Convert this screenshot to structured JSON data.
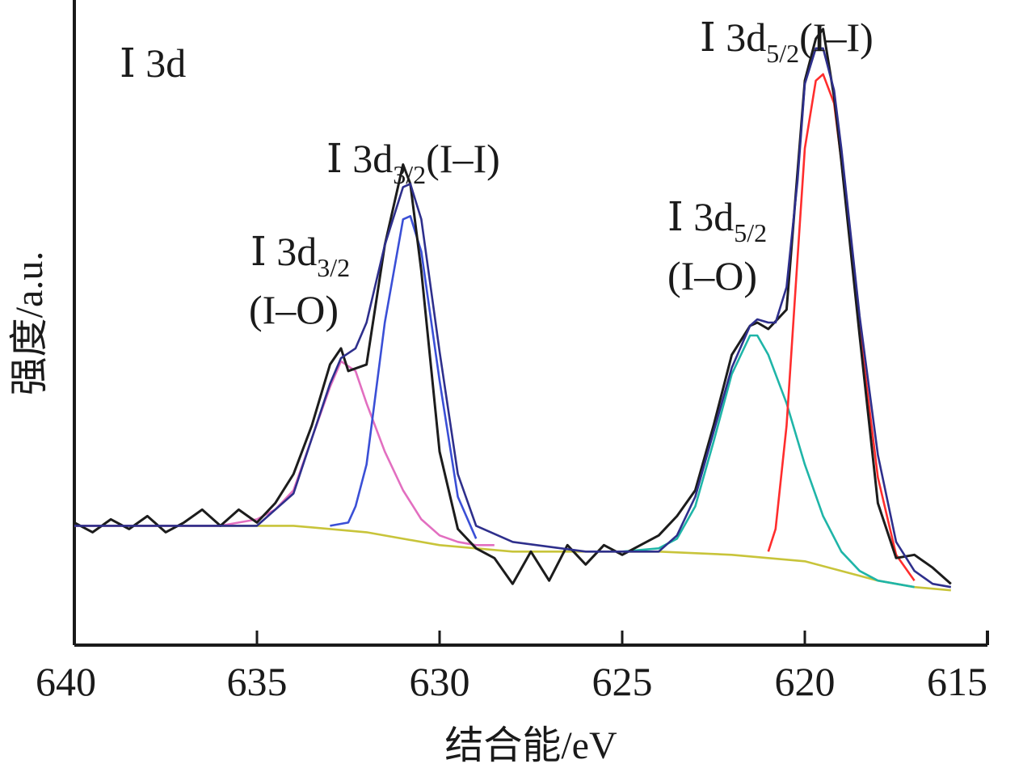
{
  "chart_data": {
    "type": "line",
    "panel_label": "Ⅰ 3d",
    "xlabel": "结合能/eV",
    "ylabel": "强度/a.u.",
    "xlim": [
      640,
      615
    ],
    "x_reversed": true,
    "x_ticks": [
      640,
      635,
      630,
      625,
      620,
      615
    ],
    "x_tick_labels": [
      "640",
      "635",
      "630",
      "625",
      "620",
      "615"
    ],
    "y_ticks_shown": false,
    "ylim": [
      0,
      100
    ],
    "grid": false,
    "legend": "none",
    "annotations": [
      {
        "id": "i3d32-io",
        "lines": [
          "Ⅰ 3d|3/2",
          "(I–O)"
        ],
        "near_x": 632.7
      },
      {
        "id": "i3d32-ii",
        "lines": [
          "Ⅰ 3d|3/2|(I–I)"
        ],
        "near_x": 631.0
      },
      {
        "id": "i3d52-io",
        "lines": [
          "Ⅰ 3d|5/2",
          "(I–O)"
        ],
        "near_x": 621.3
      },
      {
        "id": "i3d52-ii",
        "lines": [
          "Ⅰ 3d|5/2|(I–I)"
        ],
        "near_x": 619.5
      }
    ],
    "series": [
      {
        "id": "raw",
        "role": "raw data",
        "color": "#1c1c1c",
        "x": [
          640.0,
          639.5,
          639.0,
          638.5,
          638.0,
          637.5,
          637.0,
          636.5,
          636.0,
          635.5,
          635.0,
          634.5,
          634.0,
          633.5,
          633.0,
          632.7,
          632.5,
          632.0,
          631.5,
          631.0,
          630.8,
          630.5,
          630.0,
          629.5,
          629.0,
          628.5,
          628.0,
          627.5,
          627.0,
          626.5,
          626.0,
          625.5,
          625.0,
          624.5,
          624.0,
          623.5,
          623.0,
          622.5,
          622.0,
          621.5,
          621.3,
          621.0,
          620.5,
          620.0,
          619.7,
          619.5,
          619.2,
          619.0,
          618.5,
          618.0,
          617.5,
          617.0,
          616.5,
          616.0
        ],
        "y": [
          19.0,
          17.5,
          19.5,
          18.0,
          20.0,
          17.5,
          19.0,
          21.0,
          18.5,
          21.0,
          19.0,
          22.0,
          26.5,
          34.0,
          43.5,
          46.0,
          42.5,
          43.5,
          62.0,
          74.5,
          71.5,
          58.0,
          30.0,
          18.0,
          15.0,
          13.5,
          9.5,
          14.5,
          10.0,
          15.5,
          12.5,
          15.5,
          14.0,
          15.5,
          17.0,
          20.0,
          24.0,
          34.0,
          45.0,
          49.5,
          50.0,
          49.0,
          52.0,
          87.5,
          94.0,
          95.5,
          85.0,
          75.0,
          48.0,
          22.0,
          13.5,
          14.0,
          12.0,
          9.5
        ]
      },
      {
        "id": "envelope",
        "role": "fitted envelope",
        "color": "#2e2f8c",
        "x": [
          640,
          637.5,
          635,
          634,
          633.5,
          633,
          632.7,
          632.3,
          632,
          631.5,
          631,
          630.8,
          630.5,
          630,
          629.5,
          629,
          628,
          626,
          624,
          623.5,
          623,
          622.5,
          622,
          621.5,
          621.3,
          621,
          620.8,
          620.5,
          620.2,
          620,
          619.7,
          619.5,
          619.2,
          619,
          618.5,
          618,
          617.5,
          617,
          616.5,
          616
        ],
        "y": [
          18.5,
          18.5,
          18.5,
          23.5,
          32.0,
          40.5,
          44.5,
          46.0,
          50.0,
          62.0,
          71.0,
          71.5,
          66.0,
          45.5,
          26.5,
          18.5,
          16.0,
          14.5,
          14.5,
          17.0,
          23.0,
          33.0,
          43.0,
          49.5,
          50.5,
          50.0,
          50.0,
          55.5,
          72.0,
          87.0,
          92.5,
          92.5,
          86.0,
          77.0,
          51.0,
          29.5,
          16.0,
          11.5,
          9.5,
          9.0
        ]
      },
      {
        "id": "peak-i3d32-io",
        "role": "I 3d3/2 (I–O) component",
        "color": "#e26fc0",
        "x": [
          640,
          636,
          635,
          634.5,
          634,
          633.5,
          633,
          632.7,
          632.3,
          632,
          631.5,
          631,
          630.5,
          630,
          629.5,
          629,
          628.5
        ],
        "y": [
          18.5,
          18.5,
          19.5,
          21.0,
          24.0,
          32.0,
          40.0,
          44.0,
          42.5,
          37.5,
          30.0,
          24.0,
          19.5,
          17.0,
          16.0,
          15.5,
          15.5
        ]
      },
      {
        "id": "peak-i3d32-ii",
        "role": "I 3d3/2 (I–I) component",
        "color": "#3a4fd6",
        "x": [
          633,
          632.5,
          632.3,
          632,
          631.5,
          631,
          630.8,
          630.5,
          630,
          629.5,
          629
        ],
        "y": [
          18.5,
          19.0,
          21.5,
          28.0,
          50.0,
          66.0,
          66.5,
          61.0,
          41.0,
          23.0,
          16.5
        ]
      },
      {
        "id": "peak-i3d52-io",
        "role": "I 3d5/2 (I–O) component",
        "color": "#1fb5a8",
        "x": [
          625,
          624,
          623.5,
          623,
          622.5,
          622,
          621.5,
          621.3,
          621,
          620.5,
          620,
          619.5,
          619,
          618.5,
          618,
          617.5,
          617
        ],
        "y": [
          14.5,
          15.0,
          16.5,
          21.5,
          31.5,
          42.0,
          48.0,
          48.0,
          45.0,
          37.5,
          28.0,
          20.0,
          14.5,
          11.5,
          10.0,
          9.5,
          9.0
        ]
      },
      {
        "id": "peak-i3d52-ii",
        "role": "I 3d5/2 (I–I) component",
        "color": "#ff2d2d",
        "x": [
          621,
          620.8,
          620.5,
          620.2,
          620,
          619.7,
          619.5,
          619.2,
          619,
          618.5,
          618,
          617.5,
          617
        ],
        "y": [
          14.5,
          18.0,
          34.0,
          60.0,
          77.0,
          87.5,
          88.5,
          84.0,
          75.0,
          49.0,
          26.0,
          14.0,
          10.0
        ]
      },
      {
        "id": "background",
        "role": "background",
        "color": "#c8c43a",
        "x": [
          640,
          636,
          634,
          632,
          630,
          628,
          626,
          624,
          622,
          620,
          619,
          618,
          617,
          616
        ],
        "y": [
          18.5,
          18.5,
          18.5,
          17.5,
          15.5,
          14.5,
          14.5,
          14.5,
          14.0,
          13.0,
          11.5,
          10.0,
          9.0,
          8.5
        ]
      }
    ]
  }
}
